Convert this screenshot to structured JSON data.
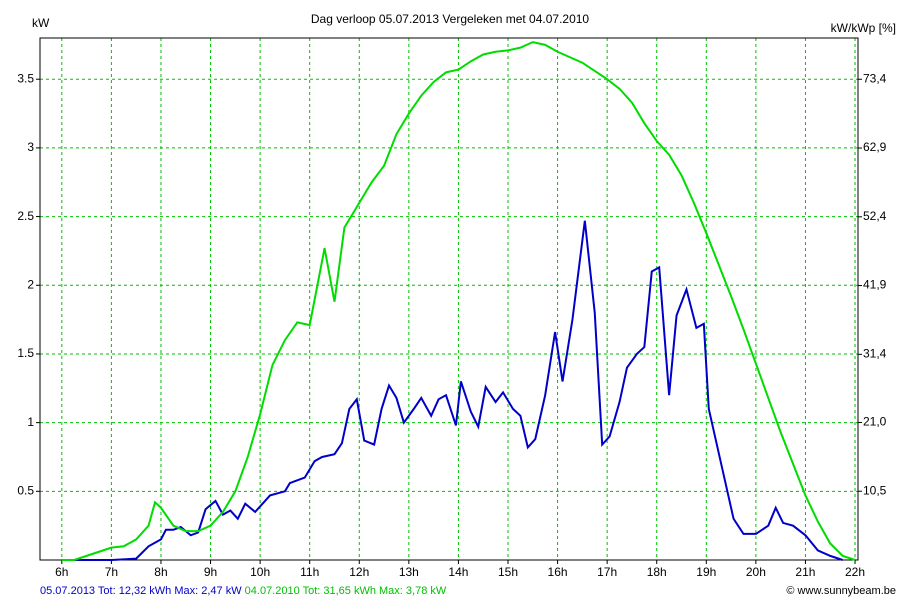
{
  "chart_data": {
    "type": "line",
    "title": "Dag  verloop 05.07.2013   Vergeleken met 04.07.2010",
    "y_label": "kW",
    "y2_label": "kW/kWp [%]",
    "credit": "© www.sunnybeam.be",
    "grid": true,
    "xlim": [
      5.56,
      22.06
    ],
    "xticks": [
      {
        "value": 6,
        "label": "6h"
      },
      {
        "value": 7,
        "label": "7h"
      },
      {
        "value": 8,
        "label": "8h"
      },
      {
        "value": 9,
        "label": "9h"
      },
      {
        "value": 10,
        "label": "10h"
      },
      {
        "value": 11,
        "label": "11h"
      },
      {
        "value": 12,
        "label": "12h"
      },
      {
        "value": 13,
        "label": "13h"
      },
      {
        "value": 14,
        "label": "14h"
      },
      {
        "value": 15,
        "label": "15h"
      },
      {
        "value": 16,
        "label": "16h"
      },
      {
        "value": 17,
        "label": "17h"
      },
      {
        "value": 18,
        "label": "18h"
      },
      {
        "value": 19,
        "label": "19h"
      },
      {
        "value": 20,
        "label": "20h"
      },
      {
        "value": 21,
        "label": "21h"
      },
      {
        "value": 22,
        "label": "22h"
      }
    ],
    "ylim": [
      0,
      3.8
    ],
    "yticks": [
      0.5,
      1,
      1.5,
      2,
      2.5,
      3,
      3.5
    ],
    "y2lim": [
      0,
      79.7
    ],
    "y2ticks": [
      {
        "value": 10.5,
        "label": "10,5"
      },
      {
        "value": 21,
        "label": "21,0"
      },
      {
        "value": 31.4,
        "label": "31,4"
      },
      {
        "value": 41.9,
        "label": "41,9"
      },
      {
        "value": 52.4,
        "label": "52,4"
      },
      {
        "value": 62.9,
        "label": "62,9"
      },
      {
        "value": 73.4,
        "label": "73,4"
      }
    ],
    "series": [
      {
        "name": "05.07.2013",
        "summary": "Tot: 12,32 kWh Max: 2,47 kW",
        "color": "#0000c8",
        "x": [
          6,
          6.5,
          7,
          7.5,
          7.75,
          8,
          8.1,
          8.25,
          8.4,
          8.6,
          8.75,
          8.9,
          9.1,
          9.25,
          9.4,
          9.55,
          9.7,
          9.9,
          10.2,
          10.5,
          10.6,
          10.9,
          11.1,
          11.25,
          11.5,
          11.65,
          11.8,
          11.95,
          12.1,
          12.3,
          12.45,
          12.6,
          12.75,
          12.9,
          13.1,
          13.25,
          13.45,
          13.6,
          13.75,
          13.95,
          14.05,
          14.25,
          14.4,
          14.55,
          14.75,
          14.9,
          15.1,
          15.25,
          15.4,
          15.55,
          15.75,
          15.95,
          16.1,
          16.3,
          16.55,
          16.75,
          16.9,
          17.05,
          17.25,
          17.4,
          17.6,
          17.75,
          17.9,
          18.05,
          18.25,
          18.4,
          18.6,
          18.8,
          18.95,
          19.05,
          19.3,
          19.55,
          19.75,
          20,
          20.25,
          20.4,
          20.55,
          20.75,
          21,
          21.25,
          21.5,
          21.75
        ],
        "values": [
          0,
          0,
          0,
          0.01,
          0.1,
          0.15,
          0.22,
          0.22,
          0.24,
          0.18,
          0.2,
          0.37,
          0.43,
          0.33,
          0.36,
          0.3,
          0.41,
          0.35,
          0.47,
          0.5,
          0.56,
          0.6,
          0.72,
          0.75,
          0.77,
          0.85,
          1.1,
          1.17,
          0.87,
          0.84,
          1.1,
          1.27,
          1.18,
          1.0,
          1.1,
          1.18,
          1.05,
          1.17,
          1.2,
          0.98,
          1.3,
          1.08,
          0.97,
          1.26,
          1.15,
          1.22,
          1.1,
          1.05,
          0.82,
          0.88,
          1.2,
          1.66,
          1.3,
          1.75,
          2.47,
          1.8,
          0.84,
          0.9,
          1.15,
          1.4,
          1.5,
          1.55,
          2.1,
          2.13,
          1.2,
          1.78,
          1.97,
          1.69,
          1.72,
          1.1,
          0.7,
          0.3,
          0.19,
          0.19,
          0.25,
          0.38,
          0.27,
          0.25,
          0.18,
          0.07,
          0.03,
          0
        ]
      },
      {
        "name": "04.07.2010",
        "summary": "Tot: 31,65 kWh Max: 3,78 kW",
        "color": "#00dc00",
        "x": [
          6,
          6.25,
          6.5,
          6.75,
          7,
          7.25,
          7.5,
          7.75,
          7.88,
          8,
          8.25,
          8.5,
          8.75,
          9,
          9.25,
          9.5,
          9.75,
          10,
          10.25,
          10.5,
          10.75,
          11,
          11.3,
          11.5,
          11.7,
          12,
          12.25,
          12.5,
          12.75,
          13,
          13.25,
          13.5,
          13.75,
          14,
          14.25,
          14.5,
          14.75,
          15,
          15.25,
          15.5,
          15.75,
          16,
          16.25,
          16.5,
          16.75,
          17,
          17.25,
          17.5,
          17.75,
          18,
          18.25,
          18.5,
          18.75,
          19,
          19.25,
          19.5,
          19.75,
          20,
          20.25,
          20.5,
          20.75,
          21,
          21.25,
          21.5,
          21.75,
          22
        ],
        "values": [
          0,
          0,
          0.03,
          0.06,
          0.09,
          0.1,
          0.15,
          0.25,
          0.42,
          0.38,
          0.25,
          0.21,
          0.21,
          0.25,
          0.35,
          0.5,
          0.75,
          1.06,
          1.42,
          1.6,
          1.73,
          1.71,
          2.27,
          1.88,
          2.42,
          2.6,
          2.75,
          2.87,
          3.1,
          3.25,
          3.38,
          3.48,
          3.55,
          3.57,
          3.63,
          3.68,
          3.7,
          3.71,
          3.73,
          3.77,
          3.75,
          3.7,
          3.66,
          3.62,
          3.56,
          3.5,
          3.43,
          3.33,
          3.18,
          3.05,
          2.95,
          2.8,
          2.6,
          2.38,
          2.15,
          1.92,
          1.68,
          1.43,
          1.18,
          0.93,
          0.7,
          0.47,
          0.28,
          0.12,
          0.03,
          0
        ]
      }
    ]
  }
}
